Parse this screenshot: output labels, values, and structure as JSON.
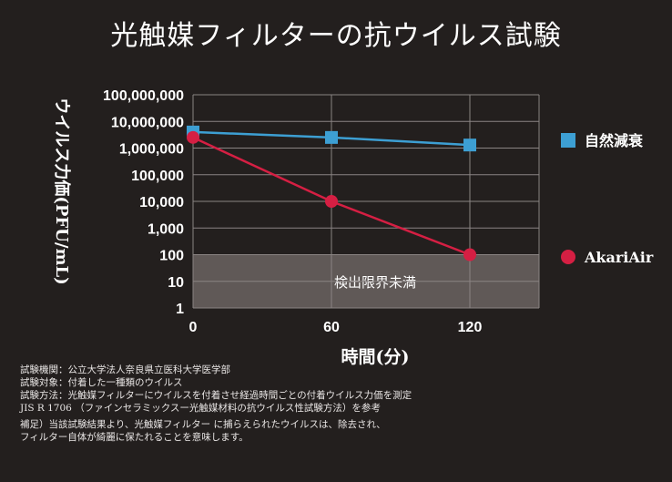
{
  "title": "光触媒フィルターの抗ウイルス試験",
  "colors": {
    "background": "#231f1e",
    "natural_decay": "#3d9fd3",
    "akariair": "#d51f43",
    "detection_limit_band": "#6b6462",
    "grid": "#8a8483"
  },
  "chart_data": {
    "type": "line",
    "title": "光触媒フィルターの抗ウイルス試験",
    "xlabel": "時間(分)",
    "ylabel": "ウイルス力価(PFU/mL)",
    "x_scale": "linear",
    "y_scale": "log",
    "xlim": [
      0,
      150
    ],
    "ylim": [
      1,
      100000000
    ],
    "x_ticks": [
      0,
      60,
      120
    ],
    "x_tick_labels": [
      "0",
      "60",
      "120"
    ],
    "y_ticks": [
      1,
      10,
      100,
      1000,
      10000,
      100000,
      1000000,
      10000000,
      100000000
    ],
    "y_tick_labels": [
      "1",
      "10",
      "100",
      "1,000",
      "10,000",
      "100,000",
      "1,000,000",
      "10,000,000",
      "100,000,000"
    ],
    "grid": true,
    "legend_position": "right",
    "series": [
      {
        "name": "自然減衰",
        "marker": "square",
        "x": [
          0,
          60,
          120
        ],
        "y": [
          4000000,
          2500000,
          1300000
        ]
      },
      {
        "name": "AkariAir",
        "marker": "circle",
        "x": [
          0,
          60,
          120
        ],
        "y": [
          2500000,
          10000,
          100
        ]
      }
    ],
    "annotations": [
      {
        "text": "検出限界未満",
        "y_range": [
          1,
          100
        ]
      }
    ]
  },
  "notes": [
    "試験機関：公立大学法人奈良県立医科大学医学部",
    "試験対象：付着した一種類のウイルス",
    "試験方法：光触媒フィルターにウイルスを付着させ経過時間ごとの付着ウイルス力価を測定",
    "JIS R 1706 （ファインセラミックスー光触媒材料の抗ウイルス性試験方法）を参考",
    "補足）当該試験結果より、光触媒フィルター に捕らえられたウイルスは、除去され、",
    "フィルター自体が綺麗に保たれることを意味します。"
  ]
}
